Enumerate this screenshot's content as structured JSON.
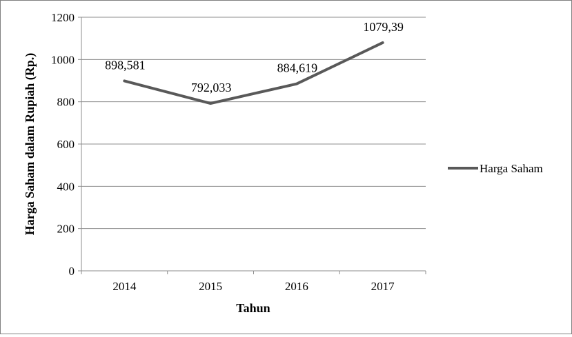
{
  "chart_data": {
    "type": "line",
    "title": "",
    "xlabel": "Tahun",
    "ylabel": "Harga Saham dalam Rupiah (Rp.)",
    "categories": [
      "2014",
      "2015",
      "2016",
      "2017"
    ],
    "series": [
      {
        "name": "Harga Saham",
        "values": [
          898.581,
          792.033,
          884.619,
          1079.39
        ],
        "labels": [
          "898,581",
          "792,033",
          "884,619",
          "1079,39"
        ],
        "color": "#595959"
      }
    ],
    "ylim": [
      0,
      1200
    ],
    "yticks": [
      "0",
      "200",
      "400",
      "600",
      "800",
      "1000",
      "1200"
    ],
    "grid": true,
    "legend": "right"
  }
}
